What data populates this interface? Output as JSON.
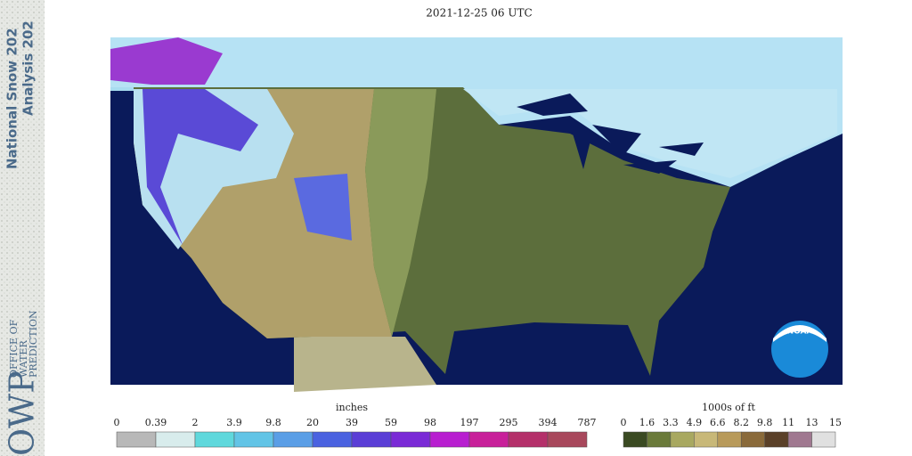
{
  "header": {
    "title": "2021-12-25 06 UTC"
  },
  "sidebar": {
    "lines": [
      "National Snow 202",
      "Analysis 202"
    ],
    "logo": "OWP",
    "org": [
      "OFFICE OF",
      "WATER",
      "PREDICTION"
    ]
  },
  "map": {
    "badge": "NOAA"
  },
  "snow_legend": {
    "title": "inches",
    "labels": [
      "0",
      "0.39",
      "2",
      "3.9",
      "9.8",
      "20",
      "39",
      "59",
      "98",
      "197",
      "295",
      "394",
      "787"
    ],
    "colors": [
      "#b8b8b8",
      "#d8ecec",
      "#5fd8dc",
      "#62c4e6",
      "#5a9ee6",
      "#4a62e0",
      "#5a3ed6",
      "#7a2ad6",
      "#b81ed0",
      "#c8209a",
      "#b4306a",
      "#a8485c"
    ]
  },
  "elev_legend": {
    "title": "1000s of ft",
    "labels": [
      "0",
      "1.6",
      "3.3",
      "4.9",
      "6.6",
      "8.2",
      "9.8",
      "11",
      "13",
      "15"
    ],
    "colors": [
      "#3a4a22",
      "#6a7a3a",
      "#a8a860",
      "#c8b878",
      "#b89a5a",
      "#8a6a3a",
      "#5a4028",
      "#a07890",
      "#e0e0e0"
    ]
  }
}
